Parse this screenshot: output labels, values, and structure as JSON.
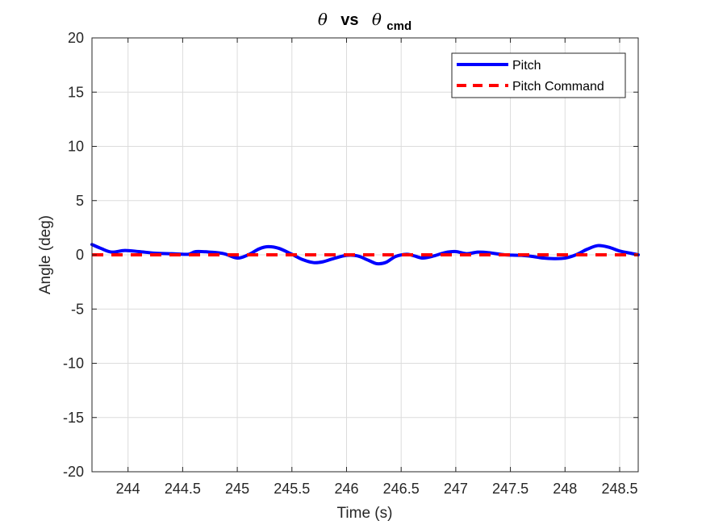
{
  "chart_data": {
    "type": "line",
    "title": {
      "theta_symbol": "θ",
      "vs_text": "vs",
      "theta_cmd_symbol": "θ",
      "theta_cmd_subscript": "cmd"
    },
    "xlabel": "Time (s)",
    "ylabel": "Angle (deg)",
    "xlim": [
      243.67,
      248.67
    ],
    "ylim": [
      -20,
      20
    ],
    "xticks": [
      244,
      244.5,
      245,
      245.5,
      246,
      246.5,
      247,
      247.5,
      248,
      248.5
    ],
    "xtick_labels": [
      "244",
      "244.5",
      "245",
      "245.5",
      "246",
      "246.5",
      "247",
      "247.5",
      "248",
      "248.5"
    ],
    "yticks": [
      20,
      15,
      10,
      5,
      0,
      -5,
      -10,
      -15,
      -20
    ],
    "ytick_labels": [
      "20",
      "15",
      "10",
      "5",
      "0",
      "-5",
      "-10",
      "-15",
      "-20"
    ],
    "grid": true,
    "legend_position": "top-right",
    "series": [
      {
        "name": "Pitch",
        "color": "#0000ff",
        "style": "solid",
        "x": [
          243.67,
          243.75,
          243.85,
          243.97,
          244.1,
          244.25,
          244.4,
          244.55,
          244.62,
          244.75,
          244.88,
          245.0,
          245.1,
          245.2,
          245.28,
          245.38,
          245.5,
          245.6,
          245.7,
          245.78,
          245.88,
          246.0,
          246.1,
          246.2,
          246.28,
          246.36,
          246.45,
          246.55,
          246.62,
          246.7,
          246.8,
          246.9,
          247.0,
          247.1,
          247.2,
          247.3,
          247.45,
          247.6,
          247.7,
          247.8,
          247.9,
          248.0,
          248.1,
          248.2,
          248.3,
          248.4,
          248.5,
          248.6,
          248.67
        ],
        "y": [
          0.95,
          0.6,
          0.25,
          0.4,
          0.3,
          0.15,
          0.1,
          0.05,
          0.3,
          0.25,
          0.1,
          -0.3,
          0.0,
          0.55,
          0.75,
          0.6,
          0.05,
          -0.45,
          -0.72,
          -0.65,
          -0.35,
          -0.05,
          -0.1,
          -0.5,
          -0.82,
          -0.7,
          -0.15,
          0.05,
          -0.1,
          -0.3,
          -0.1,
          0.2,
          0.3,
          0.1,
          0.25,
          0.2,
          0.0,
          -0.05,
          -0.15,
          -0.3,
          -0.35,
          -0.3,
          0.0,
          0.5,
          0.85,
          0.7,
          0.35,
          0.15,
          0.0
        ]
      },
      {
        "name": "Pitch Command",
        "color": "#ff0000",
        "style": "dashed",
        "x": [
          243.67,
          248.67
        ],
        "y": [
          0,
          0
        ]
      }
    ]
  }
}
